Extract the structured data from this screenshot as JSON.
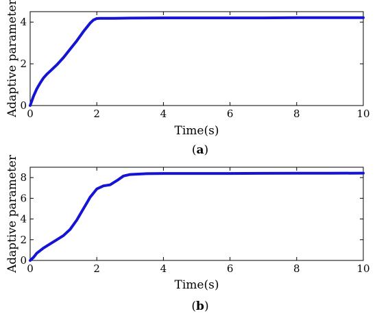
{
  "chart_data": [
    {
      "type": "line",
      "caption_letter": "a",
      "xlabel": "Time(s)",
      "ylabel": "Adaptive parameter",
      "xlim": [
        0,
        10
      ],
      "ylim": [
        0,
        4.5
      ],
      "xticks": [
        0,
        2,
        4,
        6,
        8,
        10
      ],
      "yticks": [
        0,
        2,
        4
      ],
      "grid": false,
      "series": [
        {
          "color": "#1414d2",
          "x": [
            0,
            0.1,
            0.2,
            0.3,
            0.4,
            0.5,
            0.6,
            0.8,
            1.0,
            1.2,
            1.4,
            1.6,
            1.8,
            1.9,
            2.0,
            2.1,
            2.5,
            3,
            4,
            5,
            6,
            7,
            8,
            9,
            10
          ],
          "y": [
            0,
            0.45,
            0.8,
            1.08,
            1.32,
            1.5,
            1.65,
            1.95,
            2.3,
            2.7,
            3.1,
            3.55,
            3.95,
            4.1,
            4.17,
            4.18,
            4.18,
            4.19,
            4.2,
            4.2,
            4.2,
            4.2,
            4.21,
            4.21,
            4.21
          ]
        }
      ]
    },
    {
      "type": "line",
      "caption_letter": "b",
      "xlabel": "Time(s)",
      "ylabel": "Adaptive parameter",
      "xlim": [
        0,
        10
      ],
      "ylim": [
        0,
        9
      ],
      "xticks": [
        0,
        2,
        4,
        6,
        8,
        10
      ],
      "yticks": [
        0,
        2,
        4,
        6,
        8
      ],
      "grid": false,
      "series": [
        {
          "color": "#1414d2",
          "x": [
            0,
            0.1,
            0.2,
            0.4,
            0.6,
            0.8,
            1.0,
            1.2,
            1.4,
            1.6,
            1.8,
            2.0,
            2.2,
            2.4,
            2.6,
            2.8,
            3.0,
            3.5,
            4,
            5,
            6,
            7,
            8,
            9,
            10
          ],
          "y": [
            0,
            0.3,
            0.7,
            1.2,
            1.6,
            2.0,
            2.4,
            3.0,
            3.9,
            5.0,
            6.1,
            6.9,
            7.2,
            7.3,
            7.7,
            8.15,
            8.3,
            8.38,
            8.4,
            8.4,
            8.4,
            8.41,
            8.42,
            8.42,
            8.43
          ]
        }
      ]
    }
  ]
}
